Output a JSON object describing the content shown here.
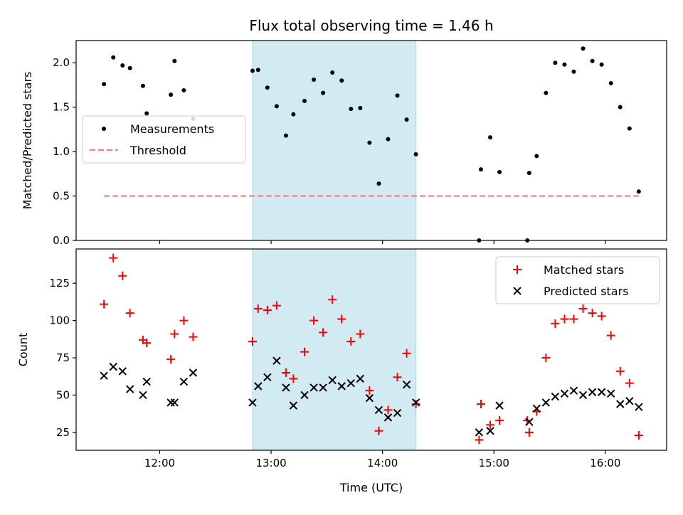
{
  "chart_data": [
    {
      "type": "scatter",
      "title": "Flux total observing time = 1.46 h",
      "xlabel": "",
      "ylabel": "Matched/Predicted stars",
      "xlim": [
        "11:15",
        "16:33"
      ],
      "ylim": [
        0,
        2.25
      ],
      "yticks": [
        "0.0",
        "0.5",
        "1.0",
        "1.5",
        "2.0"
      ],
      "grid": false,
      "legend_position": "center-left",
      "shaded_interval": [
        "12:50",
        "14:18"
      ],
      "shade_color": "#add8e6",
      "series": [
        {
          "name": "Measurements",
          "marker": "dot",
          "color": "#000000",
          "points": [
            [
              "11:30",
              1.76
            ],
            [
              "11:35",
              2.06
            ],
            [
              "11:40",
              1.97
            ],
            [
              "11:44",
              1.94
            ],
            [
              "11:51",
              1.74
            ],
            [
              "11:53",
              1.43
            ],
            [
              "12:06",
              1.64
            ],
            [
              "12:08",
              2.02
            ],
            [
              "12:13",
              1.69
            ],
            [
              "12:18",
              1.37
            ],
            [
              "12:50",
              1.91
            ],
            [
              "12:53",
              1.92
            ],
            [
              "12:58",
              1.72
            ],
            [
              "13:03",
              1.51
            ],
            [
              "13:08",
              1.18
            ],
            [
              "13:12",
              1.42
            ],
            [
              "13:18",
              1.57
            ],
            [
              "13:23",
              1.81
            ],
            [
              "13:28",
              1.66
            ],
            [
              "13:33",
              1.89
            ],
            [
              "13:38",
              1.8
            ],
            [
              "13:43",
              1.48
            ],
            [
              "13:48",
              1.49
            ],
            [
              "13:53",
              1.1
            ],
            [
              "13:58",
              0.64
            ],
            [
              "14:03",
              1.14
            ],
            [
              "14:08",
              1.63
            ],
            [
              "14:13",
              1.36
            ],
            [
              "14:18",
              0.97
            ],
            [
              "14:52",
              0.0
            ],
            [
              "14:53",
              0.8
            ],
            [
              "14:58",
              1.16
            ],
            [
              "15:03",
              0.77
            ],
            [
              "15:18",
              0.0
            ],
            [
              "15:19",
              0.76
            ],
            [
              "15:23",
              0.95
            ],
            [
              "15:28",
              1.66
            ],
            [
              "15:33",
              2.0
            ],
            [
              "15:38",
              1.98
            ],
            [
              "15:43",
              1.9
            ],
            [
              "15:48",
              2.16
            ],
            [
              "15:53",
              2.02
            ],
            [
              "15:58",
              1.98
            ],
            [
              "16:03",
              1.77
            ],
            [
              "16:08",
              1.5
            ],
            [
              "16:13",
              1.26
            ],
            [
              "16:18",
              0.55
            ]
          ]
        },
        {
          "name": "Threshold",
          "marker": "dashed-line",
          "color": "#f08080",
          "points": [
            [
              "11:30",
              0.5
            ],
            [
              "16:18",
              0.5
            ]
          ]
        }
      ]
    },
    {
      "type": "scatter",
      "title": "",
      "xlabel": "Time (UTC)",
      "ylabel": "Count",
      "xlim": [
        "11:15",
        "16:33"
      ],
      "ylim": [
        13,
        148
      ],
      "yticks": [
        "25",
        "50",
        "75",
        "100",
        "125"
      ],
      "xticks": [
        "12:00",
        "13:00",
        "14:00",
        "15:00",
        "16:00"
      ],
      "grid": false,
      "legend_position": "top-right",
      "shaded_interval": [
        "12:50",
        "14:18"
      ],
      "shade_color": "#add8e6",
      "series": [
        {
          "name": "Matched stars",
          "marker": "plus",
          "color": "#ff0000",
          "points": [
            [
              "11:30",
              111
            ],
            [
              "11:35",
              142
            ],
            [
              "11:40",
              130
            ],
            [
              "11:44",
              105
            ],
            [
              "11:51",
              87
            ],
            [
              "11:53",
              85
            ],
            [
              "12:06",
              74
            ],
            [
              "12:08",
              91
            ],
            [
              "12:13",
              100
            ],
            [
              "12:18",
              89
            ],
            [
              "12:50",
              86
            ],
            [
              "12:53",
              108
            ],
            [
              "12:58",
              107
            ],
            [
              "13:03",
              110
            ],
            [
              "13:08",
              65
            ],
            [
              "13:12",
              61
            ],
            [
              "13:18",
              79
            ],
            [
              "13:23",
              100
            ],
            [
              "13:28",
              92
            ],
            [
              "13:33",
              114
            ],
            [
              "13:38",
              101
            ],
            [
              "13:43",
              86
            ],
            [
              "13:48",
              91
            ],
            [
              "13:53",
              53
            ],
            [
              "13:58",
              26
            ],
            [
              "14:03",
              40
            ],
            [
              "14:08",
              62
            ],
            [
              "14:13",
              78
            ],
            [
              "14:18",
              44
            ],
            [
              "14:52",
              20
            ],
            [
              "14:53",
              44
            ],
            [
              "14:58",
              30
            ],
            [
              "15:03",
              33
            ],
            [
              "15:18",
              33
            ],
            [
              "15:19",
              25
            ],
            [
              "15:23",
              39
            ],
            [
              "15:28",
              75
            ],
            [
              "15:33",
              98
            ],
            [
              "15:38",
              101
            ],
            [
              "15:43",
              101
            ],
            [
              "15:48",
              108
            ],
            [
              "15:53",
              105
            ],
            [
              "15:58",
              103
            ],
            [
              "16:03",
              90
            ],
            [
              "16:08",
              66
            ],
            [
              "16:13",
              58
            ],
            [
              "16:18",
              23
            ]
          ]
        },
        {
          "name": "Predicted stars",
          "marker": "x",
          "color": "#000000",
          "points": [
            [
              "11:30",
              63
            ],
            [
              "11:35",
              69
            ],
            [
              "11:40",
              66
            ],
            [
              "11:44",
              54
            ],
            [
              "11:51",
              50
            ],
            [
              "11:53",
              59
            ],
            [
              "12:06",
              45
            ],
            [
              "12:08",
              45
            ],
            [
              "12:13",
              59
            ],
            [
              "12:18",
              65
            ],
            [
              "12:50",
              45
            ],
            [
              "12:53",
              56
            ],
            [
              "12:58",
              62
            ],
            [
              "13:03",
              73
            ],
            [
              "13:08",
              55
            ],
            [
              "13:12",
              43
            ],
            [
              "13:18",
              50
            ],
            [
              "13:23",
              55
            ],
            [
              "13:28",
              55
            ],
            [
              "13:33",
              60
            ],
            [
              "13:38",
              56
            ],
            [
              "13:43",
              58
            ],
            [
              "13:48",
              61
            ],
            [
              "13:53",
              48
            ],
            [
              "13:58",
              40
            ],
            [
              "14:03",
              35
            ],
            [
              "14:08",
              38
            ],
            [
              "14:13",
              57
            ],
            [
              "14:18",
              45
            ],
            [
              "14:52",
              25
            ],
            [
              "14:58",
              26
            ],
            [
              "15:03",
              43
            ],
            [
              "15:19",
              32
            ],
            [
              "15:23",
              41
            ],
            [
              "15:28",
              45
            ],
            [
              "15:33",
              49
            ],
            [
              "15:38",
              51
            ],
            [
              "15:43",
              53
            ],
            [
              "15:48",
              50
            ],
            [
              "15:53",
              52
            ],
            [
              "15:58",
              52
            ],
            [
              "16:03",
              51
            ],
            [
              "16:08",
              44
            ],
            [
              "16:13",
              46
            ],
            [
              "16:18",
              42
            ]
          ]
        }
      ]
    }
  ]
}
